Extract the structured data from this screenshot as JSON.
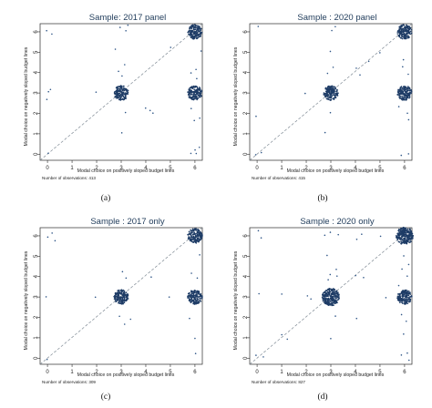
{
  "chart_data": [
    {
      "type": "scatter",
      "title": "Sample: 2017 panel",
      "xlabel": "Modal choice on positively sloped budget lines",
      "ylabel": "Modal choice on negatively sloped budget lines",
      "x_ticks": [
        "0",
        "1",
        "2",
        "3",
        "4",
        "5",
        "6"
      ],
      "y_ticks": [
        "0",
        "1",
        "2",
        "3",
        "4",
        "5",
        "6"
      ],
      "xlim": [
        -0.3,
        6.3
      ],
      "ylim": [
        -0.3,
        6.4
      ],
      "reference_line": "45-degree dashed",
      "note": "Number of observations: 413",
      "caption": "(a)",
      "clusters": [
        {
          "x": 6,
          "y": 6,
          "weight": "large"
        },
        {
          "x": 3,
          "y": 3,
          "weight": "large"
        },
        {
          "x": 6,
          "y": 3,
          "weight": "large"
        }
      ],
      "points": [
        [
          0,
          6
        ],
        [
          0.2,
          5.9
        ],
        [
          3,
          6.2
        ],
        [
          3.2,
          6.1
        ],
        [
          2.9,
          4.1
        ],
        [
          3.1,
          4.4
        ],
        [
          3.0,
          3.9
        ],
        [
          4.0,
          2.3
        ],
        [
          4.2,
          2.1
        ],
        [
          4.3,
          2.0
        ],
        [
          5.8,
          4.0
        ],
        [
          6.0,
          4.2
        ],
        [
          6.1,
          3.7
        ],
        [
          5.9,
          2.2
        ],
        [
          6.0,
          1.6
        ],
        [
          6.2,
          1.8
        ],
        [
          0.1,
          3.2
        ],
        [
          0,
          3.0
        ],
        [
          0,
          2.7
        ],
        [
          0,
          0
        ],
        [
          5.8,
          0.1
        ],
        [
          6.0,
          0.2
        ],
        [
          6.2,
          0.3
        ],
        [
          6.0,
          0.0
        ],
        [
          2.8,
          5.1
        ],
        [
          6.3,
          5.0
        ],
        [
          2.0,
          3.1
        ],
        [
          3.0,
          1.0
        ],
        [
          3.2,
          2.0
        ],
        [
          5.0,
          5.2
        ],
        [
          3.3,
          6.3
        ]
      ]
    },
    {
      "type": "scatter",
      "title": "Sample : 2020 panel",
      "xlabel": "Modal choice on positively sloped budget lines",
      "ylabel": "Modal choice on negatively sloped budget lines",
      "x_ticks": [
        "0",
        "1",
        "2",
        "3",
        "4",
        "5",
        "6"
      ],
      "y_ticks": [
        "0",
        "1",
        "2",
        "3",
        "4",
        "5",
        "6"
      ],
      "xlim": [
        -0.3,
        6.3
      ],
      "ylim": [
        -0.3,
        6.4
      ],
      "reference_line": "45-degree dashed",
      "note": "Number of observations: 415",
      "caption": "(b)",
      "clusters": [
        {
          "x": 6,
          "y": 6,
          "weight": "large"
        },
        {
          "x": 3,
          "y": 3,
          "weight": "large"
        },
        {
          "x": 6,
          "y": 3,
          "weight": "large"
        }
      ],
      "points": [
        [
          0,
          6.2
        ],
        [
          3,
          6.1
        ],
        [
          3.2,
          6.2
        ],
        [
          2.9,
          3.9
        ],
        [
          3.1,
          4.2
        ],
        [
          3.0,
          5.0
        ],
        [
          4.0,
          4.2
        ],
        [
          4.2,
          3.9
        ],
        [
          5.9,
          4.3
        ],
        [
          6.1,
          3.9
        ],
        [
          6.0,
          4.6
        ],
        [
          5.8,
          2.3
        ],
        [
          6.1,
          2.0
        ],
        [
          6.2,
          1.7
        ],
        [
          0,
          0
        ],
        [
          0.2,
          0.1
        ],
        [
          5.9,
          -0.1
        ],
        [
          6.2,
          0.0
        ],
        [
          2.8,
          1.0
        ],
        [
          3.0,
          2.0
        ],
        [
          4.5,
          4.5
        ],
        [
          5.0,
          5.0
        ],
        [
          2.0,
          3.0
        ],
        [
          0,
          1.9
        ]
      ]
    },
    {
      "type": "scatter",
      "title": "Sample : 2017 only",
      "xlabel": "Modal choice on positively sloped budget lines",
      "ylabel": "Modal choice on negatively sloped budget lines",
      "x_ticks": [
        "0",
        "1",
        "2",
        "3",
        "4",
        "5",
        "6"
      ],
      "y_ticks": [
        "0",
        "1",
        "2",
        "3",
        "4",
        "5",
        "6"
      ],
      "xlim": [
        -0.3,
        6.3
      ],
      "ylim": [
        -0.3,
        6.4
      ],
      "reference_line": "45-degree dashed",
      "note": "Number of observations: 309",
      "caption": "(c)",
      "clusters": [
        {
          "x": 6,
          "y": 6,
          "weight": "large"
        },
        {
          "x": 3,
          "y": 3,
          "weight": "large"
        },
        {
          "x": 6,
          "y": 3,
          "weight": "large"
        }
      ],
      "points": [
        [
          0,
          6.0
        ],
        [
          0.2,
          6.2
        ],
        [
          0.3,
          5.8
        ],
        [
          3.0,
          4.2
        ],
        [
          3.2,
          3.9
        ],
        [
          2.9,
          2.1
        ],
        [
          3.1,
          1.7
        ],
        [
          3.4,
          1.9
        ],
        [
          5.9,
          4.1
        ],
        [
          6.1,
          3.9
        ],
        [
          5.8,
          2.0
        ],
        [
          6.0,
          1.0
        ],
        [
          0,
          3.0
        ],
        [
          0,
          0
        ],
        [
          6.0,
          0.2
        ],
        [
          2.0,
          3.0
        ],
        [
          4.2,
          4.0
        ],
        [
          6.2,
          5.1
        ],
        [
          5.0,
          3.0
        ]
      ]
    },
    {
      "type": "scatter",
      "title": "Sample : 2020 only",
      "xlabel": "Modal choice on positively sloped budget lines",
      "ylabel": "Modal choice on negatively sloped budget lines",
      "x_ticks": [
        "0",
        "1",
        "2",
        "3",
        "4",
        "5",
        "6"
      ],
      "y_ticks": [
        "0",
        "1",
        "2",
        "3",
        "4",
        "5",
        "6"
      ],
      "xlim": [
        -0.3,
        6.3
      ],
      "ylim": [
        -0.3,
        6.4
      ],
      "reference_line": "45-degree dashed",
      "note": "Number of observations: 827",
      "caption": "(d)",
      "clusters": [
        {
          "x": 6,
          "y": 6,
          "weight": "very large"
        },
        {
          "x": 3,
          "y": 3,
          "weight": "very large"
        },
        {
          "x": 6,
          "y": 3,
          "weight": "large"
        }
      ],
      "points": [
        [
          0,
          6.2
        ],
        [
          0.2,
          5.9
        ],
        [
          0.1,
          3.1
        ],
        [
          3,
          6.2
        ],
        [
          3.3,
          6.1
        ],
        [
          2.7,
          6.0
        ],
        [
          3.0,
          4.1
        ],
        [
          3.2,
          4.3
        ],
        [
          2.9,
          3.8
        ],
        [
          3.3,
          4.0
        ],
        [
          2.8,
          5.0
        ],
        [
          4.0,
          4.1
        ],
        [
          4.3,
          3.9
        ],
        [
          4.1,
          2.0
        ],
        [
          5.9,
          4.4
        ],
        [
          6.1,
          4.0
        ],
        [
          5.8,
          3.6
        ],
        [
          6.0,
          5.0
        ],
        [
          6.2,
          4.6
        ],
        [
          5.9,
          2.1
        ],
        [
          6.1,
          1.8
        ],
        [
          6.0,
          1.2
        ],
        [
          0,
          0.1
        ],
        [
          0.2,
          0.0
        ],
        [
          1.0,
          1.1
        ],
        [
          1.2,
          0.9
        ],
        [
          5.9,
          0.1
        ],
        [
          6.1,
          0.2
        ],
        [
          6.2,
          -0.1
        ],
        [
          2.0,
          3.1
        ],
        [
          2.2,
          2.9
        ],
        [
          3.0,
          1.0
        ],
        [
          3.2,
          2.0
        ],
        [
          5.0,
          6.0
        ],
        [
          5.2,
          3.0
        ],
        [
          1.0,
          3.1
        ],
        [
          4.0,
          5.8
        ],
        [
          4.3,
          6.1
        ]
      ]
    }
  ]
}
